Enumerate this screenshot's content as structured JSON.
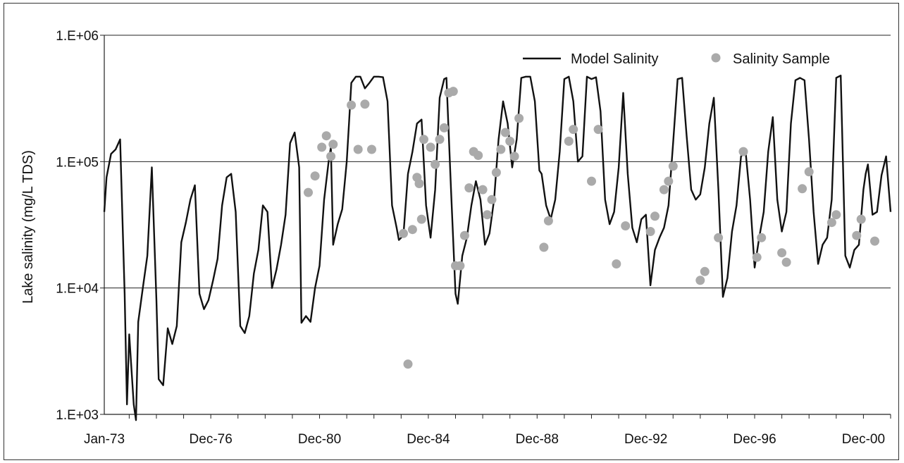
{
  "chart_data": {
    "type": "line",
    "title": "",
    "ylabel": "Lake salinity (mg/L TDS)",
    "xlabel": "",
    "y_scale": "log",
    "ylim": [
      1000,
      1000000
    ],
    "xlim": [
      "1973-01",
      "2001-12"
    ],
    "y_ticks": [
      {
        "value": 1000,
        "label": "1.E+03"
      },
      {
        "value": 10000,
        "label": "1.E+04"
      },
      {
        "value": 100000,
        "label": "1.E+05"
      },
      {
        "value": 1000000,
        "label": "1.E+06"
      }
    ],
    "x_ticks": [
      {
        "date": "1973-01",
        "label": "Jan-73"
      },
      {
        "date": "1976-12",
        "label": "Dec-76"
      },
      {
        "date": "1980-12",
        "label": "Dec-80"
      },
      {
        "date": "1984-12",
        "label": "Dec-84"
      },
      {
        "date": "1988-12",
        "label": "Dec-88"
      },
      {
        "date": "1992-12",
        "label": "Dec-92"
      },
      {
        "date": "1996-12",
        "label": "Dec-96"
      },
      {
        "date": "2000-12",
        "label": "Dec-00"
      }
    ],
    "grid": "horizontal",
    "legend": "top-right",
    "series": [
      {
        "name": "Model Salinity",
        "kind": "line",
        "color": "#111111",
        "points": [
          [
            "1973-01",
            40000
          ],
          [
            "1973-02",
            75000
          ],
          [
            "1973-04",
            115000
          ],
          [
            "1973-06",
            125000
          ],
          [
            "1973-08",
            150000
          ],
          [
            "1973-10",
            9000
          ],
          [
            "1973-11",
            1200
          ],
          [
            "1973-12",
            4300
          ],
          [
            "1974-02",
            1200
          ],
          [
            "1974-03",
            900
          ],
          [
            "1974-04",
            5400
          ],
          [
            "1974-06",
            10000
          ],
          [
            "1974-08",
            18000
          ],
          [
            "1974-10",
            90000
          ],
          [
            "1974-12",
            8000
          ],
          [
            "1975-01",
            1900
          ],
          [
            "1975-03",
            1700
          ],
          [
            "1975-05",
            4800
          ],
          [
            "1975-07",
            3600
          ],
          [
            "1975-09",
            5000
          ],
          [
            "1975-11",
            23000
          ],
          [
            "1976-01",
            33000
          ],
          [
            "1976-03",
            50000
          ],
          [
            "1976-05",
            65000
          ],
          [
            "1976-07",
            9000
          ],
          [
            "1976-09",
            6800
          ],
          [
            "1976-11",
            8000
          ],
          [
            "1977-01",
            11500
          ],
          [
            "1977-03",
            17000
          ],
          [
            "1977-05",
            45000
          ],
          [
            "1977-07",
            75000
          ],
          [
            "1977-09",
            80000
          ],
          [
            "1977-11",
            40000
          ],
          [
            "1978-01",
            5000
          ],
          [
            "1978-03",
            4400
          ],
          [
            "1978-05",
            6000
          ],
          [
            "1978-07",
            13000
          ],
          [
            "1978-09",
            20000
          ],
          [
            "1978-11",
            45000
          ],
          [
            "1979-01",
            40000
          ],
          [
            "1979-03",
            10000
          ],
          [
            "1979-05",
            14000
          ],
          [
            "1979-07",
            22000
          ],
          [
            "1979-09",
            38000
          ],
          [
            "1979-11",
            140000
          ],
          [
            "1980-01",
            170000
          ],
          [
            "1980-03",
            90000
          ],
          [
            "1980-04",
            5300
          ],
          [
            "1980-06",
            6000
          ],
          [
            "1980-08",
            5400
          ],
          [
            "1980-10",
            10000
          ],
          [
            "1980-12",
            15000
          ],
          [
            "1981-02",
            50000
          ],
          [
            "1981-04",
            100000
          ],
          [
            "1981-05",
            130000
          ],
          [
            "1981-06",
            22000
          ],
          [
            "1981-08",
            32000
          ],
          [
            "1981-10",
            42000
          ],
          [
            "1981-12",
            100000
          ],
          [
            "1982-01",
            200000
          ],
          [
            "1982-02",
            420000
          ],
          [
            "1982-04",
            470000
          ],
          [
            "1982-06",
            470000
          ],
          [
            "1982-08",
            380000
          ],
          [
            "1982-10",
            420000
          ],
          [
            "1982-12",
            470000
          ],
          [
            "1983-02",
            470000
          ],
          [
            "1983-04",
            465000
          ],
          [
            "1983-06",
            300000
          ],
          [
            "1983-08",
            45000
          ],
          [
            "1983-10",
            30000
          ],
          [
            "1983-11",
            24000
          ],
          [
            "1984-01",
            26000
          ],
          [
            "1984-03",
            80000
          ],
          [
            "1984-05",
            120000
          ],
          [
            "1984-07",
            200000
          ],
          [
            "1984-09",
            215000
          ],
          [
            "1984-11",
            45000
          ],
          [
            "1985-01",
            25000
          ],
          [
            "1985-03",
            60000
          ],
          [
            "1985-05",
            320000
          ],
          [
            "1985-07",
            450000
          ],
          [
            "1985-08",
            460000
          ],
          [
            "1985-10",
            60000
          ],
          [
            "1985-12",
            9000
          ],
          [
            "1986-01",
            7500
          ],
          [
            "1986-03",
            18000
          ],
          [
            "1986-05",
            25000
          ],
          [
            "1986-07",
            45000
          ],
          [
            "1986-09",
            70000
          ],
          [
            "1986-11",
            50000
          ],
          [
            "1987-01",
            22000
          ],
          [
            "1987-03",
            27000
          ],
          [
            "1987-05",
            50000
          ],
          [
            "1987-07",
            150000
          ],
          [
            "1987-09",
            300000
          ],
          [
            "1987-11",
            200000
          ],
          [
            "1988-01",
            90000
          ],
          [
            "1988-03",
            150000
          ],
          [
            "1988-05",
            460000
          ],
          [
            "1988-07",
            470000
          ],
          [
            "1988-09",
            470000
          ],
          [
            "1988-11",
            300000
          ],
          [
            "1989-01",
            85000
          ],
          [
            "1989-02",
            80000
          ],
          [
            "1989-04",
            45000
          ],
          [
            "1989-06",
            35000
          ],
          [
            "1989-08",
            50000
          ],
          [
            "1989-10",
            120000
          ],
          [
            "1989-12",
            450000
          ],
          [
            "1990-02",
            470000
          ],
          [
            "1990-04",
            300000
          ],
          [
            "1990-06",
            100000
          ],
          [
            "1990-08",
            110000
          ],
          [
            "1990-10",
            470000
          ],
          [
            "1990-12",
            450000
          ],
          [
            "1991-02",
            465000
          ],
          [
            "1991-04",
            250000
          ],
          [
            "1991-06",
            50000
          ],
          [
            "1991-08",
            32000
          ],
          [
            "1991-10",
            40000
          ],
          [
            "1991-12",
            90000
          ],
          [
            "1992-02",
            350000
          ],
          [
            "1992-04",
            80000
          ],
          [
            "1992-06",
            30000
          ],
          [
            "1992-08",
            23000
          ],
          [
            "1992-10",
            35000
          ],
          [
            "1992-12",
            38000
          ],
          [
            "1993-02",
            10500
          ],
          [
            "1993-04",
            20000
          ],
          [
            "1993-06",
            25000
          ],
          [
            "1993-08",
            30000
          ],
          [
            "1993-10",
            45000
          ],
          [
            "1993-12",
            140000
          ],
          [
            "1994-02",
            450000
          ],
          [
            "1994-04",
            460000
          ],
          [
            "1994-06",
            160000
          ],
          [
            "1994-08",
            60000
          ],
          [
            "1994-10",
            50000
          ],
          [
            "1994-12",
            55000
          ],
          [
            "1995-02",
            90000
          ],
          [
            "1995-04",
            200000
          ],
          [
            "1995-06",
            320000
          ],
          [
            "1995-08",
            60000
          ],
          [
            "1995-10",
            8500
          ],
          [
            "1995-12",
            12000
          ],
          [
            "1996-02",
            28000
          ],
          [
            "1996-04",
            45000
          ],
          [
            "1996-06",
            110000
          ],
          [
            "1996-08",
            120000
          ],
          [
            "1996-10",
            50000
          ],
          [
            "1996-12",
            14500
          ],
          [
            "1997-02",
            25000
          ],
          [
            "1997-04",
            40000
          ],
          [
            "1997-06",
            120000
          ],
          [
            "1997-08",
            225000
          ],
          [
            "1997-10",
            50000
          ],
          [
            "1997-12",
            28000
          ],
          [
            "1998-02",
            40000
          ],
          [
            "1998-04",
            200000
          ],
          [
            "1998-06",
            440000
          ],
          [
            "1998-08",
            460000
          ],
          [
            "1998-10",
            440000
          ],
          [
            "1998-12",
            150000
          ],
          [
            "1999-02",
            40000
          ],
          [
            "1999-04",
            15500
          ],
          [
            "1999-06",
            22000
          ],
          [
            "1999-08",
            25000
          ],
          [
            "1999-10",
            50000
          ],
          [
            "1999-12",
            460000
          ],
          [
            "2000-02",
            480000
          ],
          [
            "2000-04",
            18000
          ],
          [
            "2000-06",
            14500
          ],
          [
            "2000-08",
            20000
          ],
          [
            "2000-10",
            22000
          ],
          [
            "2000-12",
            60000
          ],
          [
            "2001-01",
            80000
          ],
          [
            "2001-02",
            95000
          ],
          [
            "2001-04",
            38000
          ],
          [
            "2001-06",
            40000
          ],
          [
            "2001-08",
            78000
          ],
          [
            "2001-10",
            110000
          ],
          [
            "2001-12",
            40000
          ]
        ]
      },
      {
        "name": "Salinity Sample",
        "kind": "scatter",
        "color": "#aaaaaa",
        "points": [
          [
            "1980-07",
            57000
          ],
          [
            "1980-10",
            77000
          ],
          [
            "1981-01",
            130000
          ],
          [
            "1981-03",
            160000
          ],
          [
            "1981-05",
            110000
          ],
          [
            "1981-06",
            137000
          ],
          [
            "1982-02",
            280000
          ],
          [
            "1982-05",
            125000
          ],
          [
            "1982-08",
            285000
          ],
          [
            "1982-11",
            125000
          ],
          [
            "1984-01",
            27000
          ],
          [
            "1984-03",
            2500
          ],
          [
            "1984-05",
            29000
          ],
          [
            "1984-07",
            75000
          ],
          [
            "1984-08",
            67000
          ],
          [
            "1984-09",
            35000
          ],
          [
            "1984-10",
            150000
          ],
          [
            "1985-01",
            130000
          ],
          [
            "1985-03",
            95000
          ],
          [
            "1985-05",
            150000
          ],
          [
            "1985-07",
            185000
          ],
          [
            "1985-09",
            350000
          ],
          [
            "1985-11",
            360000
          ],
          [
            "1985-12",
            15000
          ],
          [
            "1986-02",
            15000
          ],
          [
            "1986-04",
            26000
          ],
          [
            "1986-06",
            62000
          ],
          [
            "1986-08",
            120000
          ],
          [
            "1986-10",
            112000
          ],
          [
            "1986-12",
            60000
          ],
          [
            "1987-02",
            38000
          ],
          [
            "1987-04",
            50000
          ],
          [
            "1987-06",
            82000
          ],
          [
            "1987-08",
            125000
          ],
          [
            "1987-10",
            170000
          ],
          [
            "1987-12",
            145000
          ],
          [
            "1988-02",
            110000
          ],
          [
            "1988-04",
            220000
          ],
          [
            "1989-03",
            21000
          ],
          [
            "1989-05",
            34000
          ],
          [
            "1990-02",
            145000
          ],
          [
            "1990-04",
            180000
          ],
          [
            "1990-12",
            70000
          ],
          [
            "1991-03",
            180000
          ],
          [
            "1991-11",
            15500
          ],
          [
            "1992-03",
            31000
          ],
          [
            "1993-02",
            28000
          ],
          [
            "1993-04",
            37000
          ],
          [
            "1993-08",
            60000
          ],
          [
            "1993-10",
            70000
          ],
          [
            "1993-12",
            92000
          ],
          [
            "1994-12",
            11500
          ],
          [
            "1995-02",
            13500
          ],
          [
            "1995-08",
            25000
          ],
          [
            "1996-07",
            120000
          ],
          [
            "1997-01",
            17500
          ],
          [
            "1997-03",
            25000
          ],
          [
            "1997-12",
            19000
          ],
          [
            "1998-02",
            16000
          ],
          [
            "1998-09",
            61000
          ],
          [
            "1998-12",
            83000
          ],
          [
            "1999-10",
            33000
          ],
          [
            "1999-12",
            38000
          ],
          [
            "2000-09",
            26000
          ],
          [
            "2000-11",
            35000
          ],
          [
            "2001-05",
            23500
          ]
        ]
      }
    ]
  }
}
